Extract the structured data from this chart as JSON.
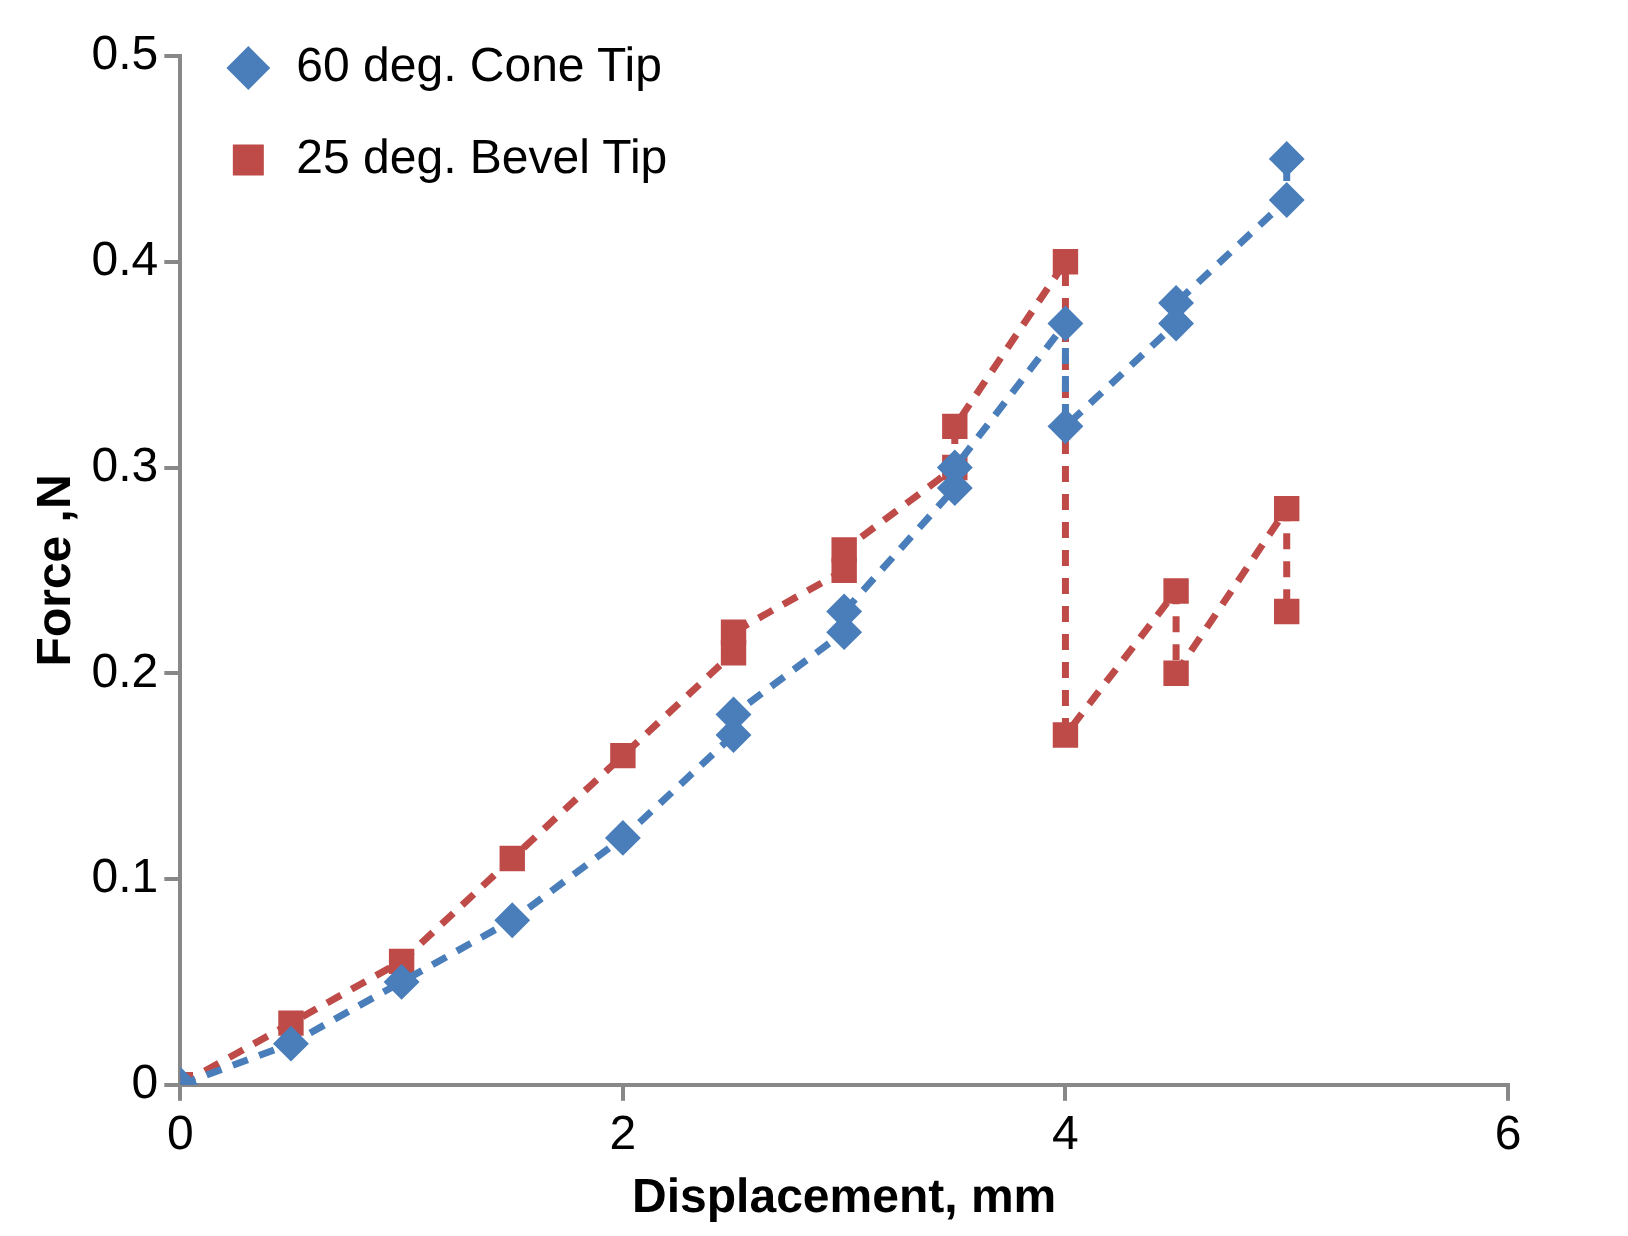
{
  "chart_data": {
    "type": "line",
    "xlabel": "Displacement, mm",
    "ylabel": "Force ,N",
    "xlim": [
      0,
      6
    ],
    "xticks": [
      0,
      2,
      4,
      6
    ],
    "ylim": [
      0,
      0.5
    ],
    "yticks": [
      0,
      0.1,
      0.2,
      0.3,
      0.4,
      0.5
    ],
    "grid": false,
    "legend": "top left",
    "line_style": "dashed",
    "series": [
      {
        "name": "60 deg. Cone Tip",
        "color": "#4a7ebb",
        "marker": "diamond",
        "x": [
          0,
          0.5,
          1,
          1.5,
          2,
          2.5,
          2.5,
          3,
          3,
          3.5,
          3.5,
          4,
          4,
          4.5,
          4.5,
          5,
          5
        ],
        "values": [
          0,
          0.02,
          0.05,
          0.08,
          0.12,
          0.17,
          0.18,
          0.22,
          0.23,
          0.29,
          0.3,
          0.37,
          0.32,
          0.37,
          0.38,
          0.43,
          0.45
        ]
      },
      {
        "name": "25 deg. Bevel Tip",
        "color": "#be4b48",
        "marker": "square",
        "x": [
          0,
          0.5,
          1,
          1.5,
          2,
          2.5,
          2.5,
          3,
          3,
          3.5,
          3.5,
          4,
          4,
          4.5,
          4.5,
          5,
          5
        ],
        "values": [
          0,
          0.03,
          0.06,
          0.11,
          0.16,
          0.21,
          0.22,
          0.25,
          0.26,
          0.3,
          0.32,
          0.4,
          0.17,
          0.24,
          0.2,
          0.28,
          0.23
        ]
      }
    ]
  }
}
